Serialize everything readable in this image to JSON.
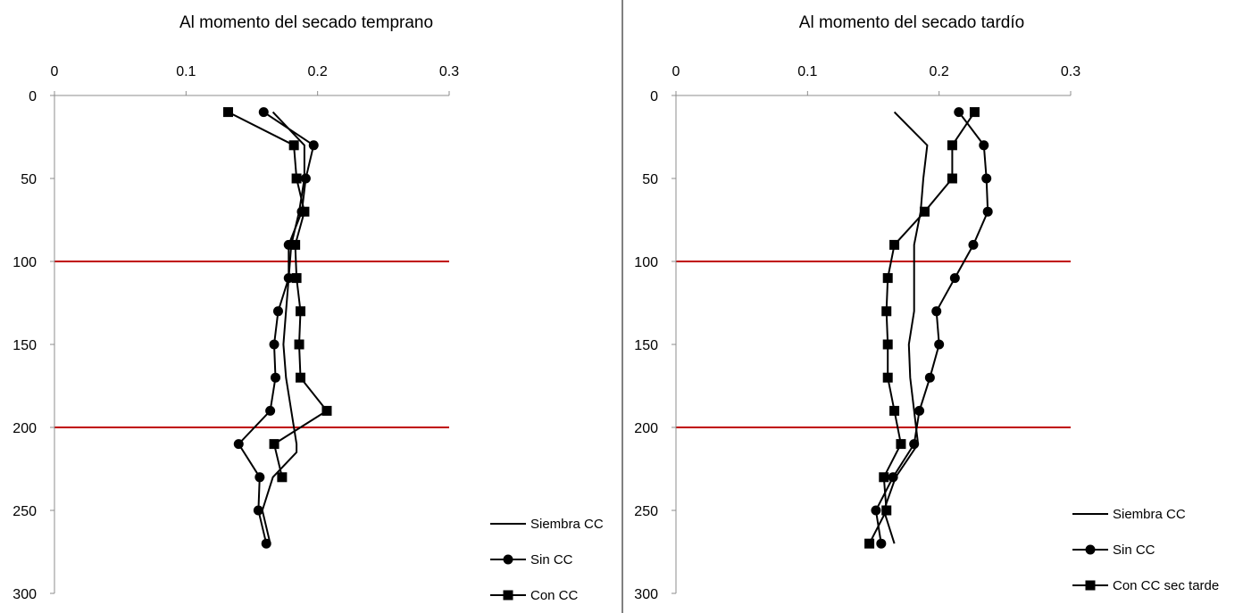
{
  "chart_data": [
    {
      "type": "line",
      "title": "Al momento del secado temprano",
      "xlabel": "",
      "ylabel": "",
      "xlim": [
        0,
        0.3
      ],
      "ylim": [
        0,
        300
      ],
      "y_inverted": true,
      "x_axis_position": "top",
      "xticks": [
        0,
        0.1,
        0.2,
        0.3
      ],
      "xtick_labels": [
        "0",
        "0.1",
        "0.2",
        "0.3"
      ],
      "yticks": [
        0,
        50,
        100,
        150,
        200,
        250,
        300
      ],
      "ytick_labels": [
        "0",
        "50",
        "100",
        "150",
        "200",
        "250",
        "300"
      ],
      "reference_lines": [
        {
          "y": 100,
          "color": "#c00000"
        },
        {
          "y": 200,
          "color": "#c00000"
        }
      ],
      "legend": "right-bottom",
      "grid": false,
      "series": [
        {
          "name": "Siembra CC",
          "marker": "none",
          "x": [
            0.166,
            0.19,
            0.19,
            0.186,
            0.18,
            0.178,
            0.176,
            0.174,
            0.176,
            0.18,
            0.184,
            0.184,
            0.166,
            0.158,
            0.164
          ],
          "y": [
            10,
            30,
            50,
            70,
            90,
            110,
            130,
            150,
            170,
            190,
            210,
            215,
            230,
            250,
            270
          ]
        },
        {
          "name": "Sin CC",
          "marker": "circle",
          "x": [
            0.159,
            0.197,
            0.191,
            0.188,
            0.178,
            0.178,
            0.17,
            0.167,
            0.168,
            0.164,
            0.14,
            0.156,
            0.155,
            0.161
          ],
          "y": [
            10,
            30,
            50,
            70,
            90,
            110,
            130,
            150,
            170,
            190,
            210,
            230,
            250,
            270
          ]
        },
        {
          "name": "Con CC",
          "marker": "square",
          "x": [
            0.132,
            0.182,
            0.184,
            0.19,
            0.183,
            0.184,
            0.187,
            0.186,
            0.187,
            0.207,
            0.167,
            0.173
          ],
          "y": [
            10,
            30,
            50,
            70,
            90,
            110,
            130,
            150,
            170,
            190,
            210,
            230
          ]
        }
      ]
    },
    {
      "type": "line",
      "title": "Al momento del secado tardío",
      "xlabel": "",
      "ylabel": "",
      "xlim": [
        0,
        0.3
      ],
      "ylim": [
        0,
        300
      ],
      "y_inverted": true,
      "x_axis_position": "top",
      "xticks": [
        0,
        0.1,
        0.2,
        0.3
      ],
      "xtick_labels": [
        "0",
        "0.1",
        "0.2",
        "0.3"
      ],
      "yticks": [
        0,
        50,
        100,
        150,
        200,
        250,
        300
      ],
      "ytick_labels": [
        "0",
        "50",
        "100",
        "150",
        "200",
        "250",
        "300"
      ],
      "reference_lines": [
        {
          "y": 100,
          "color": "#c00000"
        },
        {
          "y": 200,
          "color": "#c00000"
        }
      ],
      "legend": "right-bottom",
      "grid": false,
      "series": [
        {
          "name": "Siembra CC",
          "marker": "none",
          "x": [
            0.166,
            0.191,
            0.188,
            0.186,
            0.181,
            0.181,
            0.181,
            0.177,
            0.178,
            0.181,
            0.184,
            0.167,
            0.158,
            0.166
          ],
          "y": [
            10,
            30,
            50,
            70,
            90,
            110,
            130,
            150,
            170,
            190,
            210,
            230,
            250,
            270
          ]
        },
        {
          "name": "Sin CC",
          "marker": "circle",
          "x": [
            0.215,
            0.234,
            0.236,
            0.237,
            0.226,
            0.212,
            0.198,
            0.2,
            0.193,
            0.185,
            0.181,
            0.165,
            0.152,
            0.156
          ],
          "y": [
            10,
            30,
            50,
            70,
            90,
            110,
            130,
            150,
            170,
            190,
            210,
            230,
            250,
            270
          ]
        },
        {
          "name": "Con CC sec tarde",
          "marker": "square",
          "x": [
            0.227,
            0.21,
            0.21,
            0.189,
            0.166,
            0.161,
            0.16,
            0.161,
            0.161,
            0.166,
            0.171,
            0.158,
            0.16,
            0.147
          ],
          "y": [
            10,
            30,
            50,
            70,
            90,
            110,
            130,
            150,
            170,
            190,
            210,
            230,
            250,
            270
          ]
        }
      ]
    }
  ]
}
